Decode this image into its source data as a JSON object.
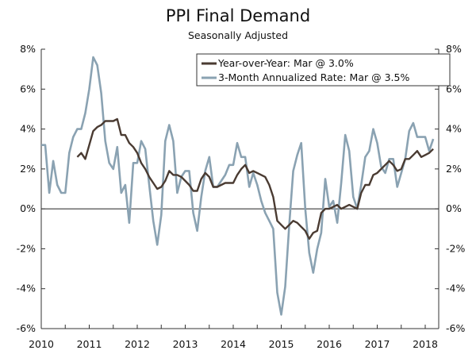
{
  "chart_data": {
    "type": "line",
    "title": "PPI Final Demand",
    "subtitle": "Seasonally Adjusted",
    "xlabel": "",
    "ylabel": "",
    "x_start": "2010-01",
    "frequency": "monthly",
    "xlim": [
      2010,
      2018.25
    ],
    "ylim": [
      -6,
      8
    ],
    "x_ticks": [
      "2010",
      "2011",
      "2012",
      "2013",
      "2014",
      "2015",
      "2016",
      "2017",
      "2018"
    ],
    "y_ticks": [
      "8%",
      "6%",
      "4%",
      "2%",
      "0%",
      "-2%",
      "-4%",
      "-6%"
    ],
    "y_tick_values": [
      8,
      6,
      4,
      2,
      0,
      -2,
      -4,
      -6
    ],
    "legend_position": "top-right",
    "grid": false,
    "series": [
      {
        "name": "Year-over-Year: Mar @ 3.0%",
        "color": "#4a3b32",
        "start_index": 9,
        "values": [
          2.6,
          2.8,
          2.5,
          3.2,
          3.9,
          4.1,
          4.2,
          4.4,
          4.4,
          4.4,
          4.5,
          3.7,
          3.7,
          3.3,
          3.1,
          2.8,
          2.3,
          2.0,
          1.6,
          1.3,
          1.0,
          1.1,
          1.4,
          1.9,
          1.7,
          1.7,
          1.6,
          1.4,
          1.2,
          0.9,
          0.9,
          1.5,
          1.8,
          1.6,
          1.1,
          1.1,
          1.2,
          1.3,
          1.3,
          1.3,
          1.7,
          2.0,
          2.2,
          1.8,
          1.9,
          1.8,
          1.7,
          1.6,
          1.2,
          0.6,
          -0.6,
          -0.8,
          -1.0,
          -0.8,
          -0.6,
          -0.7,
          -0.9,
          -1.1,
          -1.5,
          -1.2,
          -1.1,
          -0.2,
          0.0,
          0.0,
          0.1,
          0.2,
          0.0,
          0.1,
          0.2,
          0.1,
          0.0,
          0.8,
          1.2,
          1.2,
          1.7,
          1.8,
          2.0,
          2.2,
          2.4,
          2.2,
          1.9,
          2.0,
          2.5,
          2.5,
          2.7,
          2.9,
          2.6,
          2.7,
          2.8,
          3.0
        ]
      },
      {
        "name": "3-Month Annualized Rate: Mar @ 3.5%",
        "color": "#8aa2b2",
        "start_index": 0,
        "values": [
          3.2,
          3.2,
          0.8,
          2.4,
          1.2,
          0.8,
          0.8,
          2.8,
          3.6,
          4.0,
          4.0,
          4.8,
          6.0,
          7.6,
          7.2,
          5.8,
          3.4,
          2.3,
          2.0,
          3.1,
          0.8,
          1.2,
          -0.7,
          2.3,
          2.3,
          3.4,
          3.0,
          1.2,
          -0.6,
          -1.8,
          -0.3,
          3.4,
          4.2,
          3.4,
          0.8,
          1.6,
          1.9,
          1.9,
          -0.2,
          -1.1,
          0.6,
          1.9,
          2.6,
          1.1,
          1.1,
          1.4,
          1.7,
          2.2,
          2.2,
          3.3,
          2.6,
          2.6,
          1.1,
          1.8,
          1.2,
          0.4,
          -0.2,
          -0.6,
          -1.0,
          -4.2,
          -5.3,
          -3.9,
          -0.8,
          1.9,
          2.7,
          3.3,
          0.0,
          -2.2,
          -3.2,
          -2.0,
          -1.2,
          1.5,
          0.1,
          0.4,
          -0.7,
          1.3,
          3.7,
          2.9,
          0.6,
          0.0,
          1.2,
          2.6,
          2.9,
          4.0,
          3.3,
          2.1,
          1.8,
          2.5,
          2.5,
          1.1,
          1.8,
          2.5,
          3.9,
          4.3,
          3.6,
          3.6,
          3.6,
          2.9,
          3.5
        ]
      }
    ]
  }
}
